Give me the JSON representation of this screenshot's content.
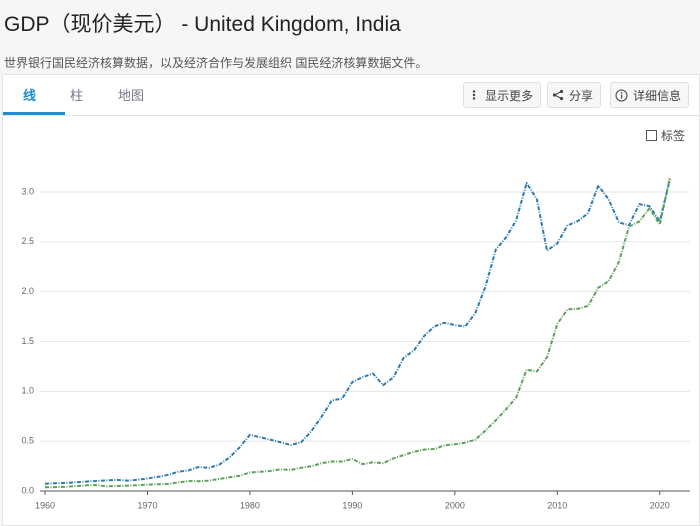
{
  "header": {
    "title": "GDP（现价美元） - United Kingdom, India",
    "subtitle": "世界银行国民经济核算数据，以及经济合作与发展组织 国民经济核算数据文件。"
  },
  "tabs": [
    "线",
    "柱",
    "地图"
  ],
  "buttons": [
    "显示更多",
    "分享",
    "详细信息"
  ],
  "checkbox_label": "标签",
  "chart_data": {
    "type": "line",
    "x": [
      1960,
      1961,
      1962,
      1963,
      1964,
      1965,
      1966,
      1967,
      1968,
      1969,
      1970,
      1971,
      1972,
      1973,
      1974,
      1975,
      1976,
      1977,
      1978,
      1979,
      1980,
      1981,
      1982,
      1983,
      1984,
      1985,
      1986,
      1987,
      1988,
      1989,
      1990,
      1991,
      1992,
      1993,
      1994,
      1995,
      1996,
      1997,
      1998,
      1999,
      2000,
      2001,
      2002,
      2003,
      2004,
      2005,
      2006,
      2007,
      2008,
      2009,
      2010,
      2011,
      2012,
      2013,
      2014,
      2015,
      2016,
      2017,
      2018,
      2019,
      2020,
      2021
    ],
    "series": [
      {
        "color": "#2f7bb0",
        "values": [
          0.073,
          0.077,
          0.081,
          0.086,
          0.094,
          0.1,
          0.106,
          0.111,
          0.104,
          0.112,
          0.125,
          0.141,
          0.162,
          0.193,
          0.207,
          0.242,
          0.232,
          0.264,
          0.335,
          0.438,
          0.564,
          0.54,
          0.515,
          0.489,
          0.462,
          0.489,
          0.601,
          0.745,
          0.91,
          0.926,
          1.093,
          1.142,
          1.179,
          1.061,
          1.14,
          1.335,
          1.409,
          1.554,
          1.651,
          1.687,
          1.665,
          1.649,
          1.785,
          2.054,
          2.421,
          2.544,
          2.718,
          3.09,
          2.93,
          2.412,
          2.485,
          2.664,
          2.707,
          2.786,
          3.065,
          2.928,
          2.694,
          2.666,
          2.878,
          2.857,
          2.704,
          3.131
        ]
      },
      {
        "color": "#5da05a",
        "values": [
          0.037,
          0.039,
          0.042,
          0.049,
          0.057,
          0.059,
          0.046,
          0.05,
          0.053,
          0.058,
          0.063,
          0.067,
          0.071,
          0.086,
          0.099,
          0.098,
          0.103,
          0.121,
          0.137,
          0.153,
          0.186,
          0.193,
          0.201,
          0.218,
          0.212,
          0.233,
          0.249,
          0.279,
          0.296,
          0.296,
          0.321,
          0.27,
          0.288,
          0.279,
          0.327,
          0.36,
          0.393,
          0.415,
          0.421,
          0.459,
          0.468,
          0.485,
          0.515,
          0.608,
          0.709,
          0.82,
          0.94,
          1.217,
          1.199,
          1.342,
          1.676,
          1.823,
          1.828,
          1.857,
          2.039,
          2.104,
          2.295,
          2.651,
          2.703,
          2.836,
          2.672,
          3.15
        ]
      }
    ],
    "xlim": [
      1960,
      2021
    ],
    "xticks": [
      1960,
      1970,
      1980,
      1990,
      2000,
      2010,
      2020
    ],
    "ylim": [
      0,
      3.2
    ],
    "yticks": [
      {
        "value": 0,
        "label": "0.0"
      },
      0.5,
      {
        "value": 1,
        "label": "1.0"
      },
      1.5,
      {
        "value": 2,
        "label": "2.0"
      },
      2.5,
      {
        "value": 3,
        "label": "3.0"
      }
    ],
    "grid": true
  }
}
